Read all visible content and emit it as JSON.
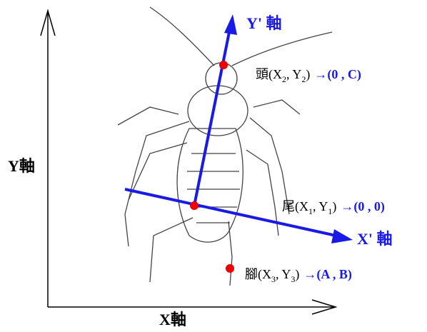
{
  "axes": {
    "y": "Y軸",
    "x": "X軸",
    "y_prime": "Y' 軸",
    "x_prime": "X' 軸"
  },
  "points": [
    {
      "label": [
        "頭(X",
        "2",
        ", Y",
        "2",
        ")"
      ],
      "mapped": "→(0 , C)"
    },
    {
      "label": [
        "尾(X",
        "1",
        ", Y",
        "1",
        ")"
      ],
      "mapped": "→(0 , 0)"
    },
    {
      "label": [
        "腳(X",
        "3",
        ", Y",
        "3",
        ")"
      ],
      "mapped": "→(A , B)"
    }
  ]
}
